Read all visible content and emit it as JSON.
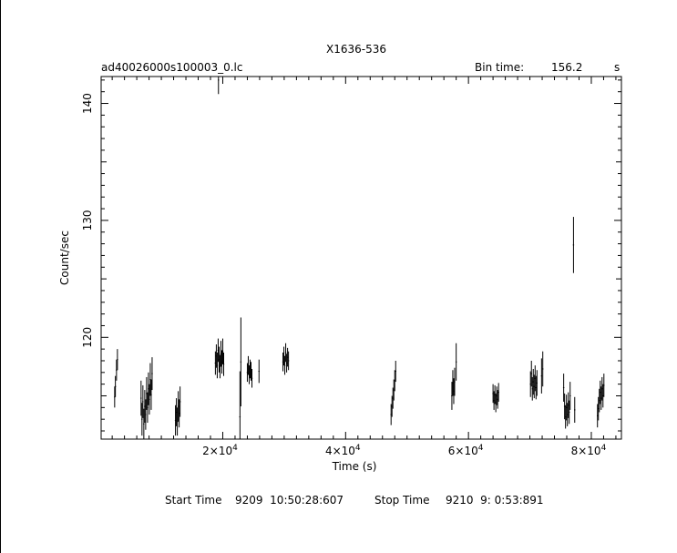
{
  "chart_data": {
    "type": "line",
    "title": "X1636-536",
    "subtitle": "ad40026000s100003_0.lc",
    "bin_time_label": "Bin time:",
    "bin_time_value": "156.2",
    "bin_time_unit": "s",
    "xlabel": "Time (s)",
    "ylabel": "Count/sec",
    "xlim": [
      200,
      84900
    ],
    "ylim": [
      111.3,
      142.3
    ],
    "x_ticks": [
      20000,
      40000,
      60000,
      80000
    ],
    "x_tick_labels": [
      {
        "mantissa": "2×10",
        "exp": "4"
      },
      {
        "mantissa": "4×10",
        "exp": "4"
      },
      {
        "mantissa": "6×10",
        "exp": "4"
      },
      {
        "mantissa": "8×10",
        "exp": "4"
      }
    ],
    "y_ticks": [
      120,
      130,
      140
    ],
    "y_tick_labels": [
      "120",
      "130",
      "140"
    ],
    "grid": false,
    "series": [
      {
        "x": [
          2400,
          2520,
          2700,
          2850,
          6700,
          6850,
          7000,
          7150,
          7300,
          7450,
          7600,
          7750,
          7900,
          8050,
          8200,
          8350,
          8500,
          12300,
          12450,
          12600,
          12750,
          12900,
          13050,
          18800,
          18950,
          19100,
          19250,
          19400,
          19550,
          19700,
          19850,
          20000,
          20150,
          22800,
          22950,
          24000,
          24150,
          24300,
          24450,
          24600,
          24750,
          25900,
          29800,
          29950,
          30100,
          30250,
          30400,
          30550,
          30700,
          47400,
          47550,
          47700,
          47850,
          48000,
          48150,
          57300,
          57450,
          57600,
          57750,
          58000,
          64000,
          64150,
          64300,
          64450,
          64600,
          64750,
          64900,
          70100,
          70250,
          70400,
          70550,
          70700,
          70850,
          71000,
          71150,
          71900,
          72100,
          75500,
          75650,
          75800,
          75950,
          76100,
          76250,
          76400,
          76550,
          77100,
          77300,
          81000,
          81150,
          81300,
          81450,
          81600,
          81750,
          81900,
          82050
        ],
        "y": [
          114.9,
          115.8,
          117.2,
          118.1,
          114.8,
          113.0,
          114.5,
          112.6,
          114.1,
          113.4,
          115.2,
          114.0,
          115.6,
          114.7,
          116.4,
          115.1,
          116.9,
          112.9,
          113.6,
          112.8,
          114.1,
          113.5,
          114.5,
          117.8,
          118.4,
          117.6,
          118.9,
          118.1,
          117.5,
          118.6,
          117.9,
          118.8,
          117.7,
          113.2,
          117.9,
          117.0,
          117.6,
          116.8,
          117.3,
          117.1,
          116.5,
          117.1,
          117.9,
          118.4,
          117.6,
          118.7,
          117.8,
          118.3,
          118.0,
          113.4,
          114.1,
          114.8,
          115.5,
          116.3,
          117.1,
          115.0,
          116.1,
          115.4,
          116.2,
          117.9,
          115.2,
          114.6,
          115.1,
          114.4,
          115.0,
          114.7,
          115.3,
          116.0,
          116.9,
          115.6,
          116.2,
          115.8,
          116.5,
          115.7,
          116.1,
          116.7,
          117.3,
          115.7,
          114.1,
          113.2,
          114.0,
          113.4,
          114.2,
          113.6,
          115.0,
          127.9,
          113.8,
          113.3,
          113.9,
          114.6,
          115.3,
          114.8,
          115.6,
          115.0,
          115.9
        ],
        "err": [
          0.9,
          0.9,
          0.9,
          0.9,
          1.5,
          1.4,
          1.4,
          1.3,
          1.4,
          1.3,
          1.4,
          1.3,
          1.4,
          1.3,
          1.4,
          1.3,
          1.4,
          1.3,
          1.2,
          1.2,
          1.3,
          1.2,
          1.3,
          1.0,
          1.0,
          1.1,
          1.0,
          1.1,
          1.0,
          1.1,
          1.0,
          1.1,
          1.0,
          3.9,
          3.8,
          0.8,
          0.8,
          0.8,
          0.8,
          0.8,
          0.8,
          1.0,
          0.8,
          0.8,
          0.8,
          0.8,
          0.8,
          0.8,
          0.8,
          0.9,
          0.9,
          0.9,
          0.9,
          0.9,
          0.9,
          1.2,
          1.1,
          1.1,
          1.2,
          1.6,
          0.8,
          0.8,
          0.8,
          0.8,
          0.8,
          0.8,
          0.8,
          1.1,
          1.1,
          1.0,
          1.1,
          1.0,
          1.1,
          1.0,
          1.1,
          1.5,
          1.5,
          1.2,
          1.1,
          1.0,
          1.1,
          1.0,
          1.1,
          1.0,
          1.2,
          2.4,
          1.1,
          1.0,
          1.0,
          1.0,
          1.0,
          1.0,
          1.0,
          1.0,
          1.0
        ]
      },
      {
        "x": [
          19300
        ],
        "y": [
          142.0
        ],
        "err": [
          1.2
        ]
      }
    ]
  },
  "footer": {
    "start_label": "Start Time",
    "start_value": "9209  10:50:28:607",
    "stop_label": "Stop Time",
    "stop_value": "9210  9: 0:53:891"
  }
}
